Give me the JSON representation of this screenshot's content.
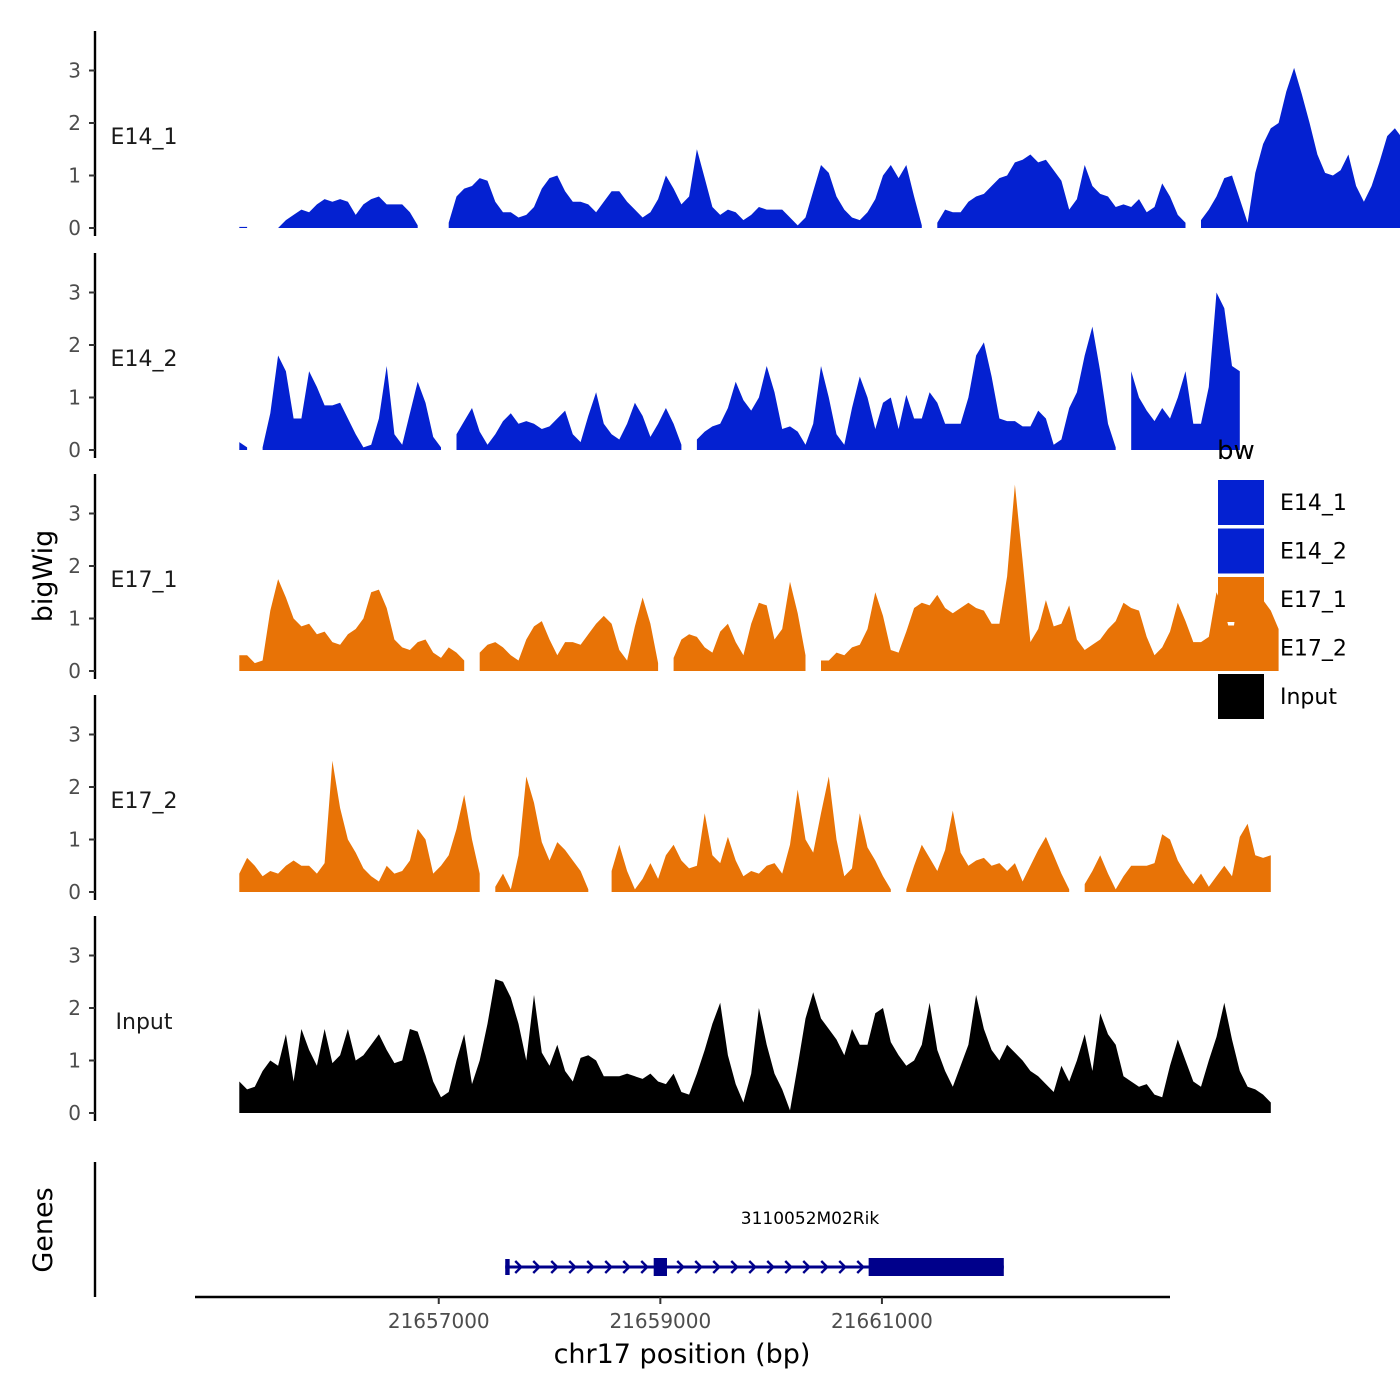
{
  "chart_data": {
    "type": "area",
    "ylabel": "bigWig",
    "xlabel": "chr17 position (bp)",
    "gene_track_label": "Genes",
    "xlim": [
      21654800,
      21663600
    ],
    "x_ticks": [
      21657000,
      21659000,
      21661000
    ],
    "x_tick_labels": [
      "21657000",
      "21659000",
      "21661000"
    ],
    "ylim": [
      0,
      3.7
    ],
    "y_ticks": [
      0,
      1,
      2,
      3
    ],
    "y_tick_labels": [
      "0",
      "1",
      "2",
      "3"
    ],
    "legend": {
      "title": "bw",
      "placement": "right",
      "entries": [
        {
          "label": "E14_1",
          "color": "#0421d1"
        },
        {
          "label": "E14_2",
          "color": "#0421d1"
        },
        {
          "label": "E17_1",
          "color": "#e87306"
        },
        {
          "label": "E17_2",
          "color": "#e87306"
        },
        {
          "label": "Input",
          "color": "#000000"
        }
      ]
    },
    "series": [
      {
        "name": "E14_1",
        "color": "#0421d1",
        "x_start": 21655200,
        "x_step": 70,
        "values": [
          0.02,
          0.02,
          null,
          null,
          null,
          0,
          0.15,
          0.25,
          0.35,
          0.3,
          0.45,
          0.55,
          0.5,
          0.55,
          0.5,
          0.25,
          0.45,
          0.55,
          0.6,
          0.45,
          0.45,
          0.45,
          0.3,
          0.05,
          null,
          null,
          null,
          0.1,
          0.6,
          0.75,
          0.8,
          0.95,
          0.9,
          0.5,
          0.3,
          0.3,
          0.2,
          0.25,
          0.4,
          0.75,
          0.95,
          1.0,
          0.7,
          0.5,
          0.5,
          0.45,
          0.3,
          0.5,
          0.7,
          0.7,
          0.5,
          0.35,
          0.2,
          0.3,
          0.55,
          1.0,
          0.75,
          0.45,
          0.6,
          1.5,
          0.95,
          0.4,
          0.25,
          0.35,
          0.3,
          0.15,
          0.25,
          0.4,
          0.35,
          0.35,
          0.35,
          0.2,
          0.05,
          0.2,
          0.7,
          1.2,
          1.05,
          0.6,
          0.35,
          0.2,
          0.15,
          0.3,
          0.55,
          1.0,
          1.2,
          0.95,
          1.2,
          0.6,
          0.05,
          null,
          0.1,
          0.35,
          0.3,
          0.3,
          0.5,
          0.6,
          0.65,
          0.8,
          0.95,
          1.0,
          1.25,
          1.3,
          1.4,
          1.25,
          1.3,
          1.1,
          0.9,
          0.35,
          0.55,
          1.2,
          0.8,
          0.65,
          0.6,
          0.4,
          0.45,
          0.4,
          0.55,
          0.3,
          0.4,
          0.85,
          0.6,
          0.25,
          0.1,
          null,
          0.15,
          0.35,
          0.6,
          0.95,
          1.0,
          0.55,
          0.1,
          1.05,
          1.6,
          1.9,
          2.0,
          2.6,
          3.05,
          2.55,
          2.0,
          1.4,
          1.05,
          1.0,
          1.1,
          1.4,
          0.8,
          0.5,
          0.8,
          1.25,
          1.75,
          1.9,
          1.7
        ]
      },
      {
        "name": "E14_2",
        "color": "#0421d1",
        "x_start": 21655200,
        "x_step": 70,
        "values": [
          0.15,
          0.05,
          null,
          0.05,
          0.7,
          1.8,
          1.5,
          0.6,
          0.6,
          1.5,
          1.2,
          0.85,
          0.85,
          0.9,
          0.6,
          0.3,
          0.05,
          0.1,
          0.6,
          1.6,
          0.3,
          0.1,
          0.7,
          1.3,
          0.9,
          0.25,
          0.05,
          null,
          0.3,
          0.55,
          0.8,
          0.35,
          0.1,
          0.3,
          0.55,
          0.7,
          0.5,
          0.55,
          0.5,
          0.4,
          0.45,
          0.6,
          0.75,
          0.3,
          0.15,
          0.65,
          1.1,
          0.5,
          0.3,
          0.2,
          0.5,
          0.9,
          0.65,
          0.25,
          0.5,
          0.8,
          0.5,
          0.1,
          null,
          0.2,
          0.35,
          0.45,
          0.5,
          0.8,
          1.3,
          0.95,
          0.75,
          1.0,
          1.6,
          1.1,
          0.4,
          0.45,
          0.35,
          0.1,
          0.5,
          1.6,
          1.0,
          0.3,
          0.1,
          0.8,
          1.4,
          1.0,
          0.4,
          0.9,
          1.0,
          0.4,
          1.05,
          0.6,
          0.6,
          1.1,
          0.9,
          0.5,
          0.5,
          0.5,
          1.0,
          1.8,
          2.05,
          1.4,
          0.6,
          0.55,
          0.55,
          0.45,
          0.45,
          0.75,
          0.6,
          0.1,
          0.2,
          0.8,
          1.1,
          1.8,
          2.35,
          1.5,
          0.5,
          0.05,
          null,
          1.5,
          1.0,
          0.75,
          0.55,
          0.8,
          0.6,
          1.0,
          1.5,
          0.5,
          0.5,
          1.2,
          3.0,
          2.7,
          1.6,
          1.5
        ]
      },
      {
        "name": "E17_1",
        "color": "#e87306",
        "x_start": 21655200,
        "x_step": 70,
        "values": [
          0.3,
          0.3,
          0.15,
          0.2,
          1.15,
          1.75,
          1.4,
          1.0,
          0.85,
          0.9,
          0.7,
          0.75,
          0.55,
          0.5,
          0.7,
          0.8,
          1.0,
          1.5,
          1.55,
          1.2,
          0.6,
          0.45,
          0.4,
          0.55,
          0.6,
          0.35,
          0.25,
          0.45,
          0.35,
          0.2,
          null,
          0.35,
          0.5,
          0.55,
          0.45,
          0.3,
          0.2,
          0.6,
          0.85,
          0.95,
          0.6,
          0.3,
          0.55,
          0.55,
          0.5,
          0.7,
          0.9,
          1.05,
          0.9,
          0.4,
          0.2,
          0.85,
          1.4,
          0.9,
          0.15,
          null,
          0.25,
          0.6,
          0.7,
          0.65,
          0.45,
          0.35,
          0.75,
          0.9,
          0.55,
          0.3,
          0.9,
          1.3,
          1.25,
          0.6,
          0.8,
          1.7,
          1.1,
          0.3,
          null,
          0.2,
          0.2,
          0.35,
          0.3,
          0.45,
          0.5,
          0.8,
          1.5,
          1.05,
          0.4,
          0.35,
          0.75,
          1.2,
          1.3,
          1.25,
          1.45,
          1.2,
          1.1,
          1.2,
          1.3,
          1.2,
          1.15,
          0.9,
          0.9,
          1.8,
          3.55,
          2.1,
          0.55,
          0.8,
          1.35,
          0.85,
          0.9,
          1.25,
          0.6,
          0.4,
          0.5,
          0.6,
          0.8,
          0.95,
          1.3,
          1.2,
          1.15,
          0.65,
          0.3,
          0.45,
          0.75,
          1.3,
          0.95,
          0.55,
          0.55,
          0.65,
          1.5,
          1.15,
          0.6,
          1.65,
          1.1,
          1.2,
          1.35,
          1.15,
          0.8
        ]
      },
      {
        "name": "E17_2",
        "color": "#e87306",
        "x_start": 21655200,
        "x_step": 70,
        "values": [
          0.35,
          0.65,
          0.5,
          0.3,
          0.4,
          0.35,
          0.5,
          0.6,
          0.5,
          0.5,
          0.35,
          0.55,
          2.5,
          1.6,
          1.0,
          0.75,
          0.45,
          0.3,
          0.2,
          0.5,
          0.35,
          0.4,
          0.6,
          1.2,
          1.0,
          0.35,
          0.5,
          0.7,
          1.2,
          1.85,
          1.0,
          0.35,
          null,
          0.1,
          0.35,
          0.05,
          0.7,
          2.2,
          1.7,
          0.95,
          0.6,
          0.95,
          0.8,
          0.6,
          0.4,
          0.05,
          null,
          null,
          0.4,
          0.9,
          0.4,
          0.05,
          0.25,
          0.55,
          0.25,
          0.7,
          0.9,
          0.6,
          0.45,
          0.5,
          1.5,
          0.7,
          0.55,
          1.05,
          0.6,
          0.3,
          0.4,
          0.35,
          0.5,
          0.55,
          0.35,
          0.9,
          1.95,
          1.0,
          0.75,
          1.5,
          2.2,
          1.0,
          0.3,
          0.45,
          1.5,
          0.85,
          0.6,
          0.3,
          0.05,
          null,
          0.05,
          0.5,
          0.9,
          0.65,
          0.4,
          0.8,
          1.55,
          0.75,
          0.5,
          0.6,
          0.65,
          0.5,
          0.55,
          0.4,
          0.55,
          0.2,
          0.5,
          0.8,
          1.05,
          0.7,
          0.35,
          0.05,
          null,
          0.15,
          0.4,
          0.7,
          0.35,
          0.05,
          0.3,
          0.5,
          0.5,
          0.5,
          0.55,
          1.1,
          1.0,
          0.6,
          0.35,
          0.15,
          0.35,
          0.1,
          0.3,
          0.5,
          0.3,
          1.05,
          1.3,
          0.7,
          0.65,
          0.7
        ]
      },
      {
        "name": "Input",
        "color": "#000000",
        "x_start": 21655200,
        "x_step": 70,
        "values": [
          0.6,
          0.45,
          0.5,
          0.8,
          1.0,
          0.9,
          1.5,
          0.6,
          1.6,
          1.2,
          0.9,
          1.6,
          0.95,
          1.1,
          1.6,
          1.0,
          1.1,
          1.3,
          1.5,
          1.2,
          0.95,
          1.0,
          1.6,
          1.55,
          1.1,
          0.6,
          0.3,
          0.4,
          1.0,
          1.5,
          0.55,
          1.0,
          1.7,
          2.55,
          2.5,
          2.2,
          1.7,
          1.0,
          2.25,
          1.15,
          0.9,
          1.3,
          0.8,
          0.6,
          1.05,
          1.1,
          1.0,
          0.7,
          0.7,
          0.7,
          0.75,
          0.7,
          0.65,
          0.75,
          0.6,
          0.55,
          0.75,
          0.4,
          0.35,
          0.75,
          1.2,
          1.7,
          2.1,
          1.1,
          0.55,
          0.2,
          0.75,
          2.0,
          1.3,
          0.75,
          0.45,
          0.05,
          0.9,
          1.8,
          2.3,
          1.8,
          1.6,
          1.4,
          1.1,
          1.6,
          1.3,
          1.3,
          1.9,
          2.0,
          1.35,
          1.1,
          0.9,
          1.0,
          1.3,
          2.1,
          1.2,
          0.8,
          0.5,
          0.9,
          1.3,
          2.25,
          1.6,
          1.2,
          1.0,
          1.3,
          1.15,
          1.0,
          0.8,
          0.7,
          0.55,
          0.4,
          0.9,
          0.6,
          1.0,
          1.5,
          0.8,
          1.9,
          1.5,
          1.3,
          0.7,
          0.6,
          0.5,
          0.55,
          0.35,
          0.3,
          0.9,
          1.4,
          1.0,
          0.6,
          0.5,
          1.0,
          1.45,
          2.1,
          1.4,
          0.8,
          0.5,
          0.45,
          0.35,
          0.2
        ]
      }
    ],
    "gene": {
      "name": "3110052M02Rik",
      "strand": "+",
      "color": "#00008b",
      "start": 21657600,
      "end": 21662100,
      "exons": [
        {
          "start": 21657600,
          "end": 21657640
        },
        {
          "start": 21658940,
          "end": 21659060
        },
        {
          "start": 21660880,
          "end": 21662100
        }
      ]
    }
  }
}
